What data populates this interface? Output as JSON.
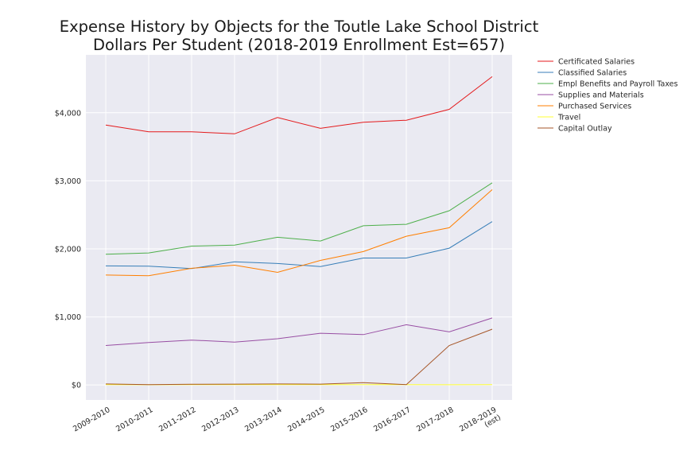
{
  "chart_data": {
    "type": "line",
    "title": "Expense History by Objects for the Toutle Lake School District",
    "subtitle": "Dollars Per Student (2018-2019 Enrollment Est=657)",
    "xlabel": "",
    "ylabel": "",
    "categories": [
      "2009-2010",
      "2010-2011",
      "2011-2012",
      "2012-2013",
      "2013-2014",
      "2014-2015",
      "2015-2016",
      "2016-2017",
      "2017-2018",
      "2018-2019\n(est)"
    ],
    "ylim": [
      -220,
      4850
    ],
    "yticks": [
      0,
      1000,
      2000,
      3000,
      4000
    ],
    "ytick_labels": [
      "$0",
      "$1,000",
      "$2,000",
      "$3,000",
      "$4,000"
    ],
    "grid": true,
    "legend_position": "outside-top-right",
    "plot_background": "#eaeaf2",
    "series": [
      {
        "name": "Certificated Salaries",
        "color": "#e41a1c",
        "values": [
          3820,
          3720,
          3720,
          3690,
          3930,
          3770,
          3860,
          3890,
          4050,
          4530
        ]
      },
      {
        "name": "Classified Salaries",
        "color": "#377eb8",
        "values": [
          1750,
          1745,
          1710,
          1810,
          1785,
          1740,
          1865,
          1865,
          2010,
          2400
        ]
      },
      {
        "name": "Empl Benefits and Payroll Taxes",
        "color": "#4daf4a",
        "values": [
          1920,
          1940,
          2040,
          2055,
          2170,
          2115,
          2340,
          2360,
          2560,
          2970
        ]
      },
      {
        "name": "Supplies and Materials",
        "color": "#984ea3",
        "values": [
          580,
          625,
          660,
          630,
          680,
          760,
          740,
          885,
          780,
          985
        ]
      },
      {
        "name": "Purchased Services",
        "color": "#ff7f00",
        "values": [
          1615,
          1605,
          1715,
          1760,
          1655,
          1830,
          1960,
          2185,
          2310,
          2870
        ]
      },
      {
        "name": "Travel",
        "color": "#ffff33",
        "values": [
          5,
          3,
          4,
          5,
          6,
          4,
          6,
          5,
          3,
          4
        ]
      },
      {
        "name": "Capital Outlay",
        "color": "#a65628",
        "values": [
          15,
          5,
          10,
          12,
          15,
          12,
          35,
          5,
          580,
          820
        ]
      }
    ]
  }
}
